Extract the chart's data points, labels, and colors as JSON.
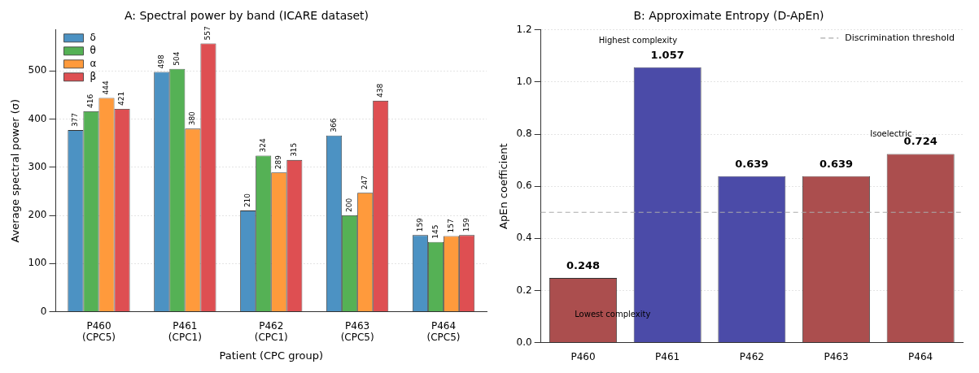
{
  "chart_data": [
    {
      "type": "bar",
      "title": "A: Spectral power by band (ICARE dataset)",
      "xlabel": "Patient (CPC group)",
      "ylabel": "Average spectral power (σ)",
      "categories": [
        "P460 (CPC5)",
        "P461 (CPC1)",
        "P462 (CPC1)",
        "P463 (CPC5)",
        "P464 (CPC5)"
      ],
      "series": [
        {
          "name": "δ",
          "color": "#4c92c3",
          "values": [
            377,
            498,
            210,
            366,
            159
          ]
        },
        {
          "name": "θ",
          "color": "#55b155",
          "values": [
            416,
            504,
            324,
            200,
            145
          ]
        },
        {
          "name": "α",
          "color": "#ff9a3c",
          "values": [
            444,
            380,
            289,
            247,
            157
          ]
        },
        {
          "name": "β",
          "color": "#de4f52",
          "values": [
            421,
            557,
            315,
            438,
            159
          ]
        }
      ],
      "ylim": [
        0,
        585
      ],
      "yticks": [
        0,
        100,
        200,
        300,
        400,
        500
      ],
      "grid": "y",
      "legend": "top left",
      "data_labels": true
    },
    {
      "type": "bar",
      "title": "B: Approximate Entropy (D-ApEn)",
      "ylabel": "ApEn coefficient",
      "categories": [
        "P460",
        "P461",
        "P462",
        "P463",
        "P464"
      ],
      "values": [
        0.248,
        1.057,
        0.639,
        0.639,
        0.724
      ],
      "colors": [
        "#ab4e4e",
        "#4b4ba8",
        "#4b4ba8",
        "#ab4e4e",
        "#ab4e4e"
      ],
      "ylim": [
        0,
        1.2
      ],
      "yticks": [
        {
          "value": 0,
          "label": "0.0"
        },
        0.2,
        0.4,
        0.6,
        0.8,
        {
          "value": 1,
          "label": "1.0"
        },
        1.2
      ],
      "grid": "y",
      "legend": "top right",
      "data_labels": true,
      "ref_lines": [
        {
          "axis": "y",
          "value": 0.5,
          "label": "Discrimination threshold",
          "color": "#aaaaaa",
          "line_style": "dashed"
        }
      ],
      "annotations": [
        "Highest complexity",
        "Lowest complexity",
        "Isoelectric"
      ]
    }
  ]
}
